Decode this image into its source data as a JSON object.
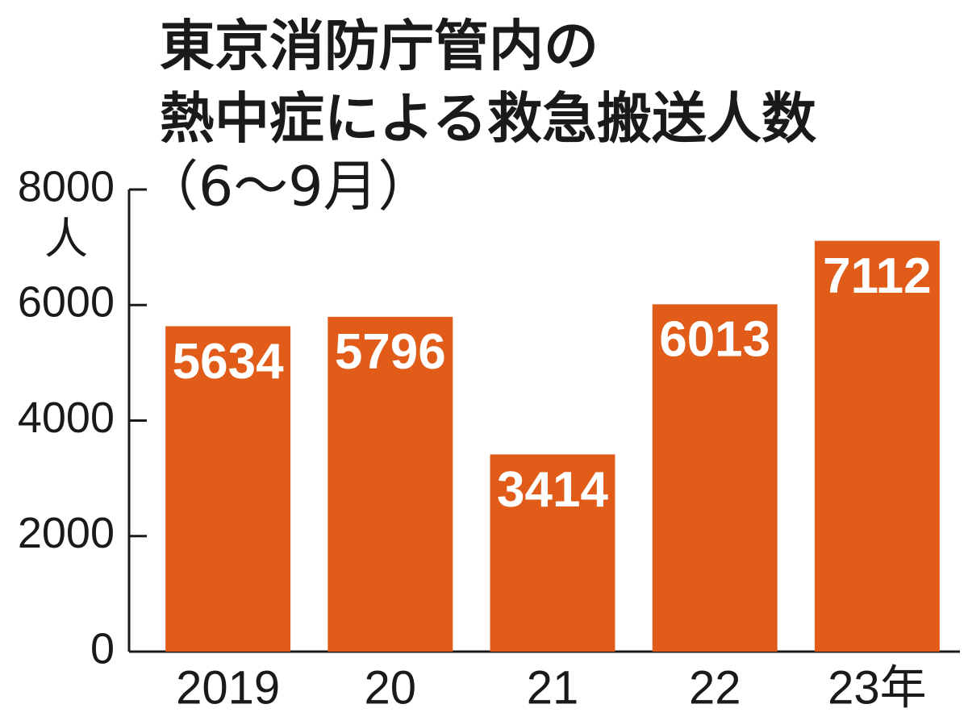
{
  "chart_data": {
    "type": "bar",
    "title": [
      "東京消防庁管内の",
      "熱中症による救急搬送人数"
    ],
    "subtitle": "（6〜9月）",
    "y_label": "人",
    "categories": [
      "2019",
      "20",
      "21",
      "22",
      "23年"
    ],
    "values": [
      5634,
      5796,
      3414,
      6013,
      7112
    ],
    "color": "#e05c18",
    "ylim": [
      0,
      8000
    ],
    "yticks": [
      0,
      2000,
      4000,
      6000,
      8000
    ],
    "grid": false
  }
}
